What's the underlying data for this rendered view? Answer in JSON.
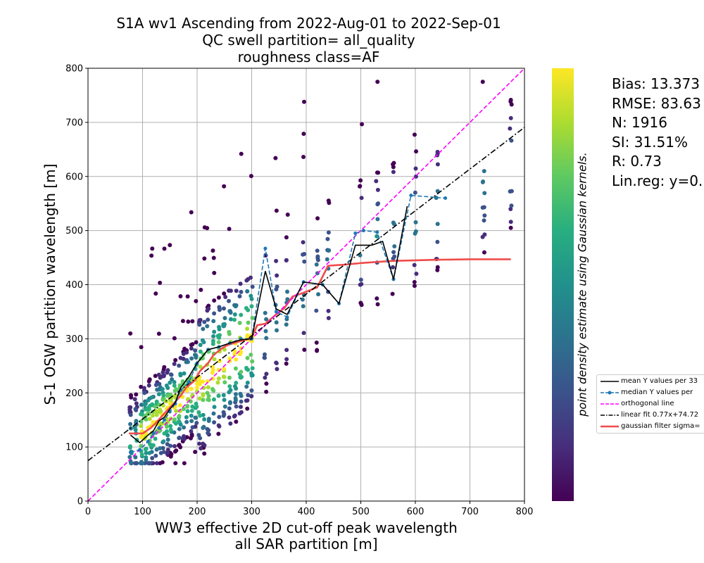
{
  "title_lines": [
    "S1A wv1 Ascending from 2022-Aug-01 to 2022-Sep-01",
    "QC swell partition= all_quality",
    "roughness class=AF"
  ],
  "stats_lines": [
    "Bias: 13.373",
    "RMSE: 83.63",
    "N: 1916",
    "SI: 31.51%",
    "R: 0.73",
    "Lin.reg: y=0."
  ],
  "colorbar_label": "point density estimate using Gaussian kernels.",
  "legend": [
    {
      "label": "mean Y values per 33",
      "color": "#000000",
      "style": "solid"
    },
    {
      "label": "median Y values per",
      "color": "#1f77b4",
      "style": "dashed-marker"
    },
    {
      "label": "orthogonal line",
      "color": "#ff00ff",
      "style": "dashed"
    },
    {
      "label": "linear fit 0.77x+74.72",
      "color": "#000000",
      "style": "dashdot"
    },
    {
      "label": "gaussian filter sigma=",
      "color": "#f04b4b",
      "style": "thick"
    }
  ],
  "chart_data": {
    "type": "scatter",
    "xlabel": "WW3 effective 2D cut-off peak wavelength\nall SAR partition [m]",
    "ylabel": "S-1 OSW partition wavelength [m]",
    "xlim": [
      0,
      800
    ],
    "ylim": [
      0,
      800
    ],
    "xticks": [
      0,
      100,
      200,
      300,
      400,
      500,
      600,
      700,
      800
    ],
    "yticks": [
      0,
      100,
      200,
      300,
      400,
      500,
      600,
      700,
      800
    ],
    "grid": true,
    "colorbar": {
      "cmap": "viridis",
      "label": "point density estimate using Gaussian kernels."
    },
    "series": [
      {
        "name": "mean Y values per 33",
        "x": [
          78,
          95,
          110,
          120,
          130,
          140,
          150,
          160,
          170,
          185,
          200,
          220,
          240,
          260,
          280,
          300,
          325,
          345,
          365,
          395,
          430,
          460,
          490,
          520,
          540,
          560,
          585
        ],
        "y": [
          122,
          108,
          122,
          130,
          148,
          155,
          170,
          182,
          210,
          230,
          255,
          280,
          285,
          292,
          298,
          300,
          425,
          355,
          345,
          405,
          400,
          365,
          473,
          473,
          480,
          410,
          545
        ]
      },
      {
        "name": "median Y values per",
        "x": [
          78,
          95,
          110,
          120,
          130,
          140,
          150,
          160,
          170,
          185,
          200,
          220,
          240,
          260,
          280,
          300,
          325,
          345,
          365,
          395,
          430,
          460,
          490,
          505,
          530,
          560,
          592,
          655
        ],
        "y": [
          90,
          95,
          110,
          125,
          135,
          150,
          165,
          180,
          205,
          220,
          255,
          280,
          285,
          292,
          300,
          300,
          467,
          350,
          340,
          405,
          400,
          365,
          495,
          500,
          497,
          410,
          565,
          560
        ]
      },
      {
        "name": "orthogonal line",
        "x": [
          0,
          800
        ],
        "y": [
          0,
          800
        ]
      },
      {
        "name": "linear fit 0.77x+74.72",
        "x": [
          0,
          800
        ],
        "y": [
          74.72,
          690.72
        ]
      },
      {
        "name": "gaussian filter sigma=",
        "x": [
          75,
          100,
          115,
          125,
          140,
          155,
          170,
          180,
          195,
          205,
          220,
          230,
          245,
          255,
          270,
          285,
          300,
          310,
          325,
          345,
          360,
          375,
          395,
          420,
          440,
          470,
          500,
          530,
          560,
          600,
          640,
          700,
          775
        ],
        "y": [
          125,
          125,
          135,
          145,
          162,
          178,
          195,
          210,
          222,
          240,
          255,
          270,
          282,
          288,
          293,
          297,
          302,
          325,
          328,
          345,
          357,
          378,
          385,
          395,
          435,
          437,
          440,
          442,
          444,
          445,
          446,
          447,
          447
        ]
      }
    ]
  }
}
